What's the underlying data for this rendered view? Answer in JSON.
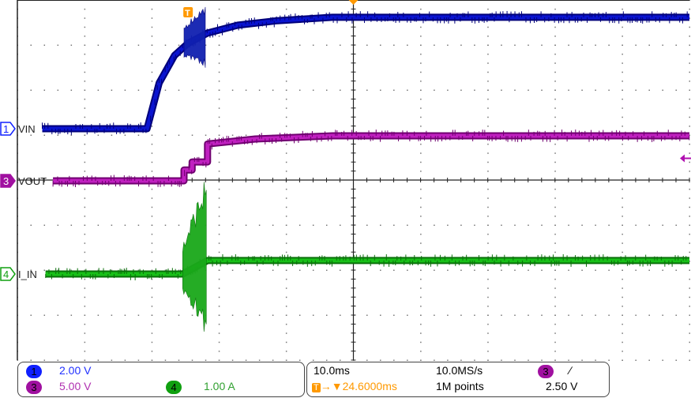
{
  "chart_data": {
    "type": "line",
    "title": "",
    "xlabel": "",
    "ylabel": "",
    "x_unit": "ms",
    "xlim": [
      -25.4,
      74.6
    ],
    "grid": true,
    "divisions": {
      "horizontal": 10,
      "vertical": 8
    },
    "series": [
      {
        "name": "VIN",
        "channel": "1",
        "unit": "V",
        "scale_per_div": 2.0,
        "color": "#0a14d0",
        "t": [
          -21.7,
          -6.1,
          -4.3,
          -2.0,
          0.0,
          2.9,
          7.4,
          13.3,
          21.5,
          74.6
        ],
        "values": [
          0,
          0,
          2.04,
          3.26,
          3.8,
          4.25,
          4.6,
          4.8,
          4.95,
          4.95
        ],
        "burst": {
          "t": [
            -0.6,
            2.7
          ],
          "min": 2.6,
          "max": 5.5
        }
      },
      {
        "name": "VOUT",
        "channel": "3",
        "unit": "V",
        "scale_per_div": 5.0,
        "color": "#c020c0",
        "t": [
          -20.1,
          -0.6,
          -0.6,
          0.6,
          0.6,
          2.9,
          2.9,
          10.0,
          21.5,
          74.6
        ],
        "values": [
          0,
          0,
          1.2,
          1.2,
          2.1,
          2.1,
          4.1,
          4.65,
          5.0,
          5.0
        ]
      },
      {
        "name": "I_IN",
        "channel": "4",
        "unit": "A",
        "scale_per_div": 1.0,
        "color": "#18c018",
        "t": [
          -21.2,
          -0.8,
          2.9,
          74.6
        ],
        "values": [
          0,
          0,
          0.3,
          0.3
        ],
        "burst": {
          "t": [
            -0.8,
            2.9
          ],
          "min": -1.5,
          "max": 2.3
        }
      }
    ]
  },
  "channels": [
    {
      "number": "1",
      "label": "VIN",
      "color": "#2030ff",
      "badge": "#1020ff",
      "scale": "2.00 V"
    },
    {
      "number": "3",
      "label": "VOUT",
      "color": "#b030b0",
      "badge": "#a010a0",
      "scale": "5.00 V"
    },
    {
      "number": "4",
      "label": "I_IN",
      "color": "#30a030",
      "badge": "#10a010",
      "scale": "1.00 A"
    }
  ],
  "timebase": {
    "time_per_div": "10.0ms",
    "sample_rate": "10.0MS/s",
    "trigger_marker": "T",
    "trigger_delay": "24.6000ms",
    "record_length": "1M points"
  },
  "trigger": {
    "source": "3",
    "slope_icon": "rising-edge-icon",
    "slope_glyph": "∕",
    "level": "2.50 V",
    "level_value": 2.5,
    "color": "#ff9900"
  }
}
